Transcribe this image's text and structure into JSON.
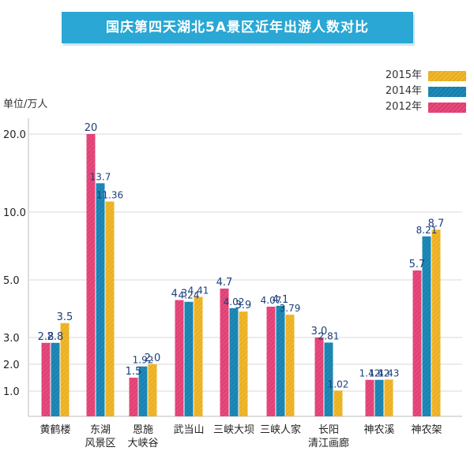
{
  "header": {
    "title": "国庆第四天湖北5A景区近年出游人数对比"
  },
  "unit_label": "单位/万人",
  "colors": {
    "2015年": "#f0b72a",
    "2014年": "#1e8ab8",
    "2012年": "#e8497c",
    "grid": "#d9d9d9",
    "value_text": "#1a3f7a"
  },
  "chart_data": {
    "type": "bar",
    "title": "国庆第四天湖北5A景区近年出游人数对比",
    "ylabel": "单位/万人",
    "y_scale": "non-linear",
    "y_ticks": [
      "1.0",
      "2.0",
      "3.0",
      "5.0",
      "10.0",
      "20.0"
    ],
    "legend_position": "top-right",
    "legend": [
      "2015年",
      "2014年",
      "2012年"
    ],
    "categories": [
      "黄鹤楼",
      "东湖\n风景区",
      "恩施\n大峡谷",
      "武当山",
      "三峡大坝",
      "三峡人家",
      "长阳\n清江画廊",
      "神农溪",
      "神农架"
    ],
    "series": [
      {
        "name": "2012年",
        "values": [
          2.8,
          20,
          1.5,
          4.3,
          4.7,
          4.07,
          3.0,
          1.42,
          5.7
        ],
        "labels": [
          "2.8",
          "20",
          "1.5",
          "4.3",
          "4.7",
          "4.07",
          "3.0",
          "1.42",
          "5.7"
        ]
      },
      {
        "name": "2014年",
        "values": [
          2.8,
          13.7,
          1.92,
          4.24,
          4.02,
          4.1,
          2.81,
          1.42,
          8.21
        ],
        "labels": [
          "2.8",
          "13.7",
          "1.92",
          "4.24",
          "4.02",
          "4.1",
          "2.81",
          "1.42",
          "8.21"
        ]
      },
      {
        "name": "2015年",
        "values": [
          3.5,
          11.36,
          2.0,
          4.41,
          3.9,
          3.79,
          1.02,
          1.43,
          8.7
        ],
        "labels": [
          "3.5",
          "11.36",
          "2.0",
          "4.41",
          "3.9",
          "3.79",
          "1.02",
          "1.43",
          "8.7"
        ]
      }
    ]
  }
}
